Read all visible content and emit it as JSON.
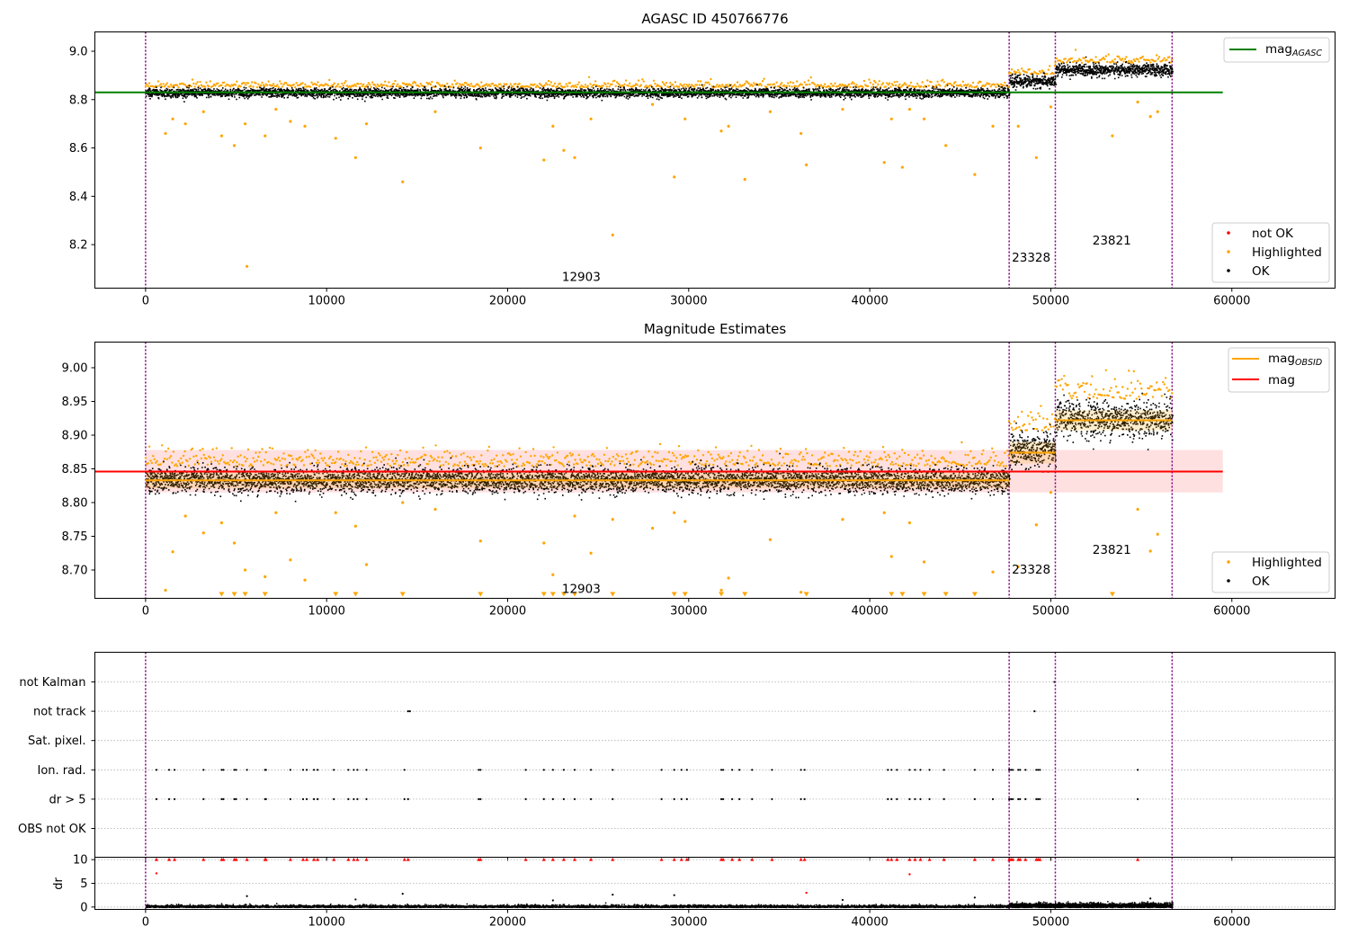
{
  "chart_data": [
    {
      "id": "agasc",
      "type": "scatter",
      "title": "AGASC ID 450766776",
      "xlim": [
        -2800,
        65700
      ],
      "ylim": [
        8.02,
        9.08
      ],
      "xticks": [
        0,
        10000,
        20000,
        30000,
        40000,
        50000,
        60000
      ],
      "yticks": [
        8.2,
        8.4,
        8.6,
        8.8,
        9.0
      ],
      "ytick_labels": [
        "8.2",
        "8.4",
        "8.6",
        "8.8",
        "9.0"
      ],
      "obs_boundaries": [
        0,
        47700,
        50250,
        56700
      ],
      "obsids": [
        {
          "label": "12903",
          "x": 23000,
          "y": 8.05
        },
        {
          "label": "23328",
          "x": 47850,
          "y": 8.13
        },
        {
          "label": "23821",
          "x": 52300,
          "y": 8.2
        }
      ],
      "mag_line": {
        "name": "mag",
        "subscript": "AGASC",
        "value": 8.83,
        "x": [
          -2800,
          59500
        ],
        "color": "#008000"
      },
      "ok_segments": [
        {
          "x0": 0,
          "x1": 47700,
          "center": 8.831,
          "spread": 0.022
        },
        {
          "x0": 47700,
          "x1": 50250,
          "center": 8.878,
          "spread": 0.03
        },
        {
          "x0": 50250,
          "x1": 56700,
          "center": 8.925,
          "spread": 0.03
        }
      ],
      "highlighted_outliers": [
        [
          1100,
          8.66
        ],
        [
          1500,
          8.72
        ],
        [
          2200,
          8.7
        ],
        [
          3200,
          8.75
        ],
        [
          4200,
          8.65
        ],
        [
          4900,
          8.61
        ],
        [
          5500,
          8.7
        ],
        [
          5600,
          8.11
        ],
        [
          6600,
          8.65
        ],
        [
          7200,
          8.76
        ],
        [
          8000,
          8.71
        ],
        [
          8800,
          8.69
        ],
        [
          10500,
          8.64
        ],
        [
          11600,
          8.56
        ],
        [
          12200,
          8.7
        ],
        [
          14200,
          8.46
        ],
        [
          16000,
          8.75
        ],
        [
          18500,
          8.6
        ],
        [
          22000,
          8.55
        ],
        [
          22500,
          8.69
        ],
        [
          23100,
          8.59
        ],
        [
          23700,
          8.56
        ],
        [
          24600,
          8.72
        ],
        [
          25800,
          8.24
        ],
        [
          28000,
          8.78
        ],
        [
          29200,
          8.48
        ],
        [
          29800,
          8.72
        ],
        [
          31800,
          8.67
        ],
        [
          32200,
          8.69
        ],
        [
          33100,
          8.47
        ],
        [
          34500,
          8.75
        ],
        [
          36200,
          8.66
        ],
        [
          36500,
          8.53
        ],
        [
          38500,
          8.76
        ],
        [
          40800,
          8.54
        ],
        [
          41200,
          8.72
        ],
        [
          41800,
          8.52
        ],
        [
          42200,
          8.76
        ],
        [
          43000,
          8.72
        ],
        [
          44200,
          8.61
        ],
        [
          45800,
          8.49
        ],
        [
          46800,
          8.69
        ],
        [
          48200,
          8.69
        ],
        [
          49200,
          8.56
        ],
        [
          50000,
          8.77
        ],
        [
          53400,
          8.65
        ],
        [
          54800,
          8.79
        ],
        [
          55500,
          8.73
        ],
        [
          55900,
          8.75
        ]
      ],
      "legend_lines": [
        {
          "label": "mag",
          "subscript": "AGASC",
          "color": "#008000"
        }
      ],
      "legend_points": [
        {
          "label": "not OK",
          "color": "#ff0000"
        },
        {
          "label": "Highlighted",
          "color": "#ffa500"
        },
        {
          "label": "OK",
          "color": "#000000"
        }
      ]
    },
    {
      "id": "estimates",
      "type": "scatter",
      "title": "Magnitude Estimates",
      "xlim": [
        -2800,
        65700
      ],
      "ylim": [
        8.658,
        9.038
      ],
      "xticks": [
        0,
        10000,
        20000,
        30000,
        40000,
        50000,
        60000
      ],
      "yticks": [
        8.7,
        8.75,
        8.8,
        8.85,
        8.9,
        8.95,
        9.0
      ],
      "ytick_labels": [
        "8.70",
        "8.75",
        "8.80",
        "8.85",
        "8.90",
        "8.95",
        "9.00"
      ],
      "obs_boundaries": [
        0,
        47700,
        50250,
        56700
      ],
      "obsids": [
        {
          "label": "12903",
          "x": 23000,
          "y": 8.666
        },
        {
          "label": "23328",
          "x": 47850,
          "y": 8.695
        },
        {
          "label": "23821",
          "x": 52300,
          "y": 8.724
        }
      ],
      "mag_line": {
        "name": "mag",
        "value": 8.846,
        "x": [
          -2800,
          59500
        ],
        "color": "#ff0000"
      },
      "mag_band": [
        8.815,
        8.878
      ],
      "obsid_mags": [
        {
          "x0": 0,
          "x1": 47700,
          "value": 8.833,
          "err": 0.012
        },
        {
          "x0": 47700,
          "x1": 50250,
          "value": 8.874,
          "err": 0.016
        },
        {
          "x0": 50250,
          "x1": 56700,
          "value": 8.922,
          "err": 0.015
        }
      ],
      "ok_segments": [
        {
          "x0": 0,
          "x1": 47700,
          "center": 8.834,
          "spread": 0.022
        },
        {
          "x0": 47700,
          "x1": 50250,
          "center": 8.878,
          "spread": 0.032
        },
        {
          "x0": 50250,
          "x1": 56700,
          "center": 8.925,
          "spread": 0.032
        }
      ],
      "highlighted_outliers": [
        [
          1100,
          8.67
        ],
        [
          1500,
          8.727
        ],
        [
          2200,
          8.78
        ],
        [
          3200,
          8.755
        ],
        [
          4200,
          8.77
        ],
        [
          4900,
          8.74
        ],
        [
          5500,
          8.7
        ],
        [
          6600,
          8.69
        ],
        [
          7200,
          8.785
        ],
        [
          8000,
          8.715
        ],
        [
          8800,
          8.685
        ],
        [
          10500,
          8.785
        ],
        [
          11600,
          8.765
        ],
        [
          12200,
          8.708
        ],
        [
          14200,
          8.8
        ],
        [
          16000,
          8.79
        ],
        [
          18500,
          8.743
        ],
        [
          22000,
          8.74
        ],
        [
          22500,
          8.693
        ],
        [
          23700,
          8.78
        ],
        [
          24600,
          8.725
        ],
        [
          25800,
          8.775
        ],
        [
          28000,
          8.762
        ],
        [
          29200,
          8.785
        ],
        [
          29800,
          8.772
        ],
        [
          31800,
          8.67
        ],
        [
          32200,
          8.688
        ],
        [
          34500,
          8.745
        ],
        [
          36200,
          8.667
        ],
        [
          38500,
          8.775
        ],
        [
          40800,
          8.785
        ],
        [
          41200,
          8.72
        ],
        [
          42200,
          8.77
        ],
        [
          43000,
          8.712
        ],
        [
          46800,
          8.697
        ],
        [
          48200,
          8.705
        ],
        [
          49200,
          8.767
        ],
        [
          50000,
          8.815
        ],
        [
          54800,
          8.79
        ],
        [
          55500,
          8.728
        ],
        [
          55900,
          8.753
        ]
      ],
      "clipped_markers_x": [
        4200,
        4900,
        5500,
        6600,
        10500,
        11600,
        14200,
        18500,
        22000,
        22500,
        23100,
        23700,
        25800,
        29200,
        29800,
        31800,
        33100,
        36500,
        41200,
        41800,
        43000,
        44200,
        45800,
        53400
      ],
      "legend_lines": [
        {
          "label": "mag",
          "subscript": "OBSID",
          "color": "#ffa500"
        },
        {
          "label": "mag",
          "color": "#ff0000"
        }
      ],
      "legend_points": [
        {
          "label": "Highlighted",
          "color": "#ffa500"
        },
        {
          "label": "OK",
          "color": "#000000"
        }
      ]
    },
    {
      "id": "flags",
      "type": "scatter",
      "xlim": [
        -2800,
        65700
      ],
      "obs_boundaries": [
        0,
        47700,
        50250,
        56700
      ],
      "categories": [
        "not Kalman",
        "not track",
        "Sat. pixel.",
        "Ion. rad.",
        "dr > 5",
        "OBS not OK"
      ],
      "flag_points": {
        "not Kalman": [
          50200
        ],
        "not track": [
          14500,
          14600,
          49100
        ],
        "Sat. pixel.": [],
        "Ion. rad.": [
          600,
          1300,
          1600,
          3200,
          4200,
          4300,
          4900,
          5000,
          5600,
          6600,
          6650,
          8000,
          8700,
          8900,
          9300,
          9500,
          10400,
          11200,
          11500,
          11700,
          12200,
          14300,
          18400,
          18500,
          21000,
          22000,
          22500,
          23100,
          23700,
          24600,
          25800,
          28500,
          29200,
          29600,
          29900,
          31800,
          31900,
          32400,
          32800,
          33500,
          34600,
          36200,
          36400,
          41000,
          41200,
          41500,
          42200,
          42500,
          42800,
          43300,
          44100,
          45800,
          46800,
          47700,
          47800,
          47900,
          48200,
          48300,
          48600,
          49200,
          49300,
          49400,
          54800
        ],
        "dr > 5": [
          600,
          1300,
          1600,
          3200,
          4200,
          4300,
          4900,
          5000,
          5600,
          6600,
          6650,
          8000,
          8700,
          8900,
          9300,
          9500,
          10400,
          11200,
          11500,
          11700,
          12200,
          14300,
          14500,
          18400,
          18500,
          21000,
          22000,
          22500,
          23100,
          23700,
          24600,
          25800,
          28500,
          29200,
          29600,
          29900,
          31800,
          31900,
          32400,
          32800,
          33500,
          34600,
          36200,
          36400,
          41000,
          41200,
          41500,
          42200,
          42500,
          42800,
          43300,
          44100,
          45800,
          46800,
          47700,
          47800,
          47900,
          48200,
          48300,
          48600,
          49200,
          49300,
          49400,
          54800
        ],
        "OBS not OK": []
      }
    },
    {
      "id": "dr",
      "type": "scatter",
      "ylabel": "dr",
      "xlim": [
        -2800,
        65700
      ],
      "ylim": [
        -0.5,
        10.5
      ],
      "yticks": [
        0,
        5,
        10
      ],
      "xticks": [
        0,
        10000,
        20000,
        30000,
        40000,
        50000,
        60000
      ],
      "obs_boundaries": [
        0,
        47700,
        50250,
        56700
      ],
      "cap": 10,
      "capped_x": [
        600,
        1300,
        1600,
        3200,
        4200,
        4300,
        4900,
        5000,
        5600,
        6600,
        6650,
        8000,
        8700,
        8900,
        9300,
        9500,
        10400,
        11200,
        11500,
        11700,
        12200,
        14300,
        14500,
        18400,
        18500,
        21000,
        22000,
        22500,
        23100,
        23700,
        24600,
        25800,
        28500,
        29200,
        29600,
        29900,
        31800,
        31900,
        32400,
        32800,
        33500,
        34600,
        36200,
        36400,
        41000,
        41200,
        41500,
        42200,
        42500,
        42800,
        43300,
        44100,
        45800,
        46800,
        47700,
        47800,
        47900,
        48200,
        48300,
        48600,
        49200,
        49300,
        49400,
        54800
      ],
      "red_points": [
        [
          600,
          7.1
        ],
        [
          42200,
          6.9
        ],
        [
          36500,
          3.0
        ]
      ],
      "black_outliers": [
        [
          14200,
          2.8
        ],
        [
          25800,
          2.6
        ],
        [
          29200,
          2.5
        ],
        [
          5600,
          2.3
        ],
        [
          22500,
          1.4
        ],
        [
          45800,
          2.0
        ],
        [
          38500,
          1.5
        ],
        [
          11600,
          1.6
        ],
        [
          55500,
          1.8
        ]
      ]
    }
  ]
}
